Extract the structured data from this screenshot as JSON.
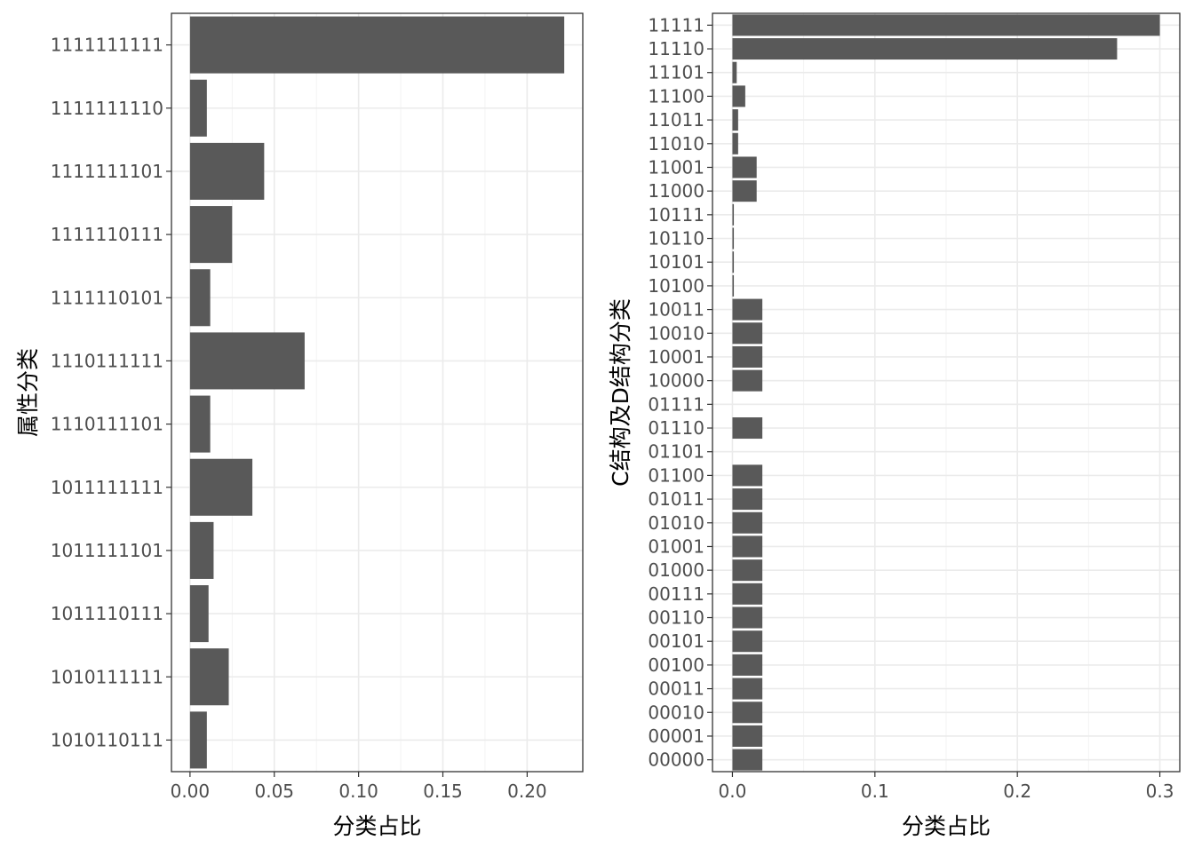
{
  "chart_data": [
    {
      "type": "bar",
      "orientation": "horizontal",
      "xlabel": "分类占比",
      "ylabel": "属性分类",
      "xlim": [
        -0.011,
        0.233
      ],
      "xticks": [
        "0.00",
        "0.05",
        "0.10",
        "0.15",
        "0.20"
      ],
      "grid": true,
      "bar_color": "#595959",
      "categories": [
        "1111111111",
        "1111111110",
        "1111111101",
        "1111110111",
        "1111110101",
        "1110111111",
        "1110111101",
        "1011111111",
        "1011111101",
        "1011110111",
        "1010111111",
        "1010110111"
      ],
      "values": [
        0.222,
        0.01,
        0.044,
        0.025,
        0.012,
        0.068,
        0.012,
        0.037,
        0.014,
        0.011,
        0.023,
        0.01
      ]
    },
    {
      "type": "bar",
      "orientation": "horizontal",
      "xlabel": "分类占比",
      "ylabel": "C结构及D结构分类",
      "xlim": [
        -0.014,
        0.314
      ],
      "xticks": [
        "0.0",
        "0.1",
        "0.2",
        "0.3"
      ],
      "grid": true,
      "bar_color": "#595959",
      "categories": [
        "11111",
        "11110",
        "11101",
        "11100",
        "11011",
        "11010",
        "11001",
        "11000",
        "10111",
        "10110",
        "10101",
        "10100",
        "10011",
        "10010",
        "10001",
        "10000",
        "01111",
        "01110",
        "01101",
        "01100",
        "01011",
        "01010",
        "01001",
        "01000",
        "00111",
        "00110",
        "00101",
        "00100",
        "00011",
        "00010",
        "00001",
        "00000"
      ],
      "values": [
        0.3,
        0.27,
        0.003,
        0.009,
        0.004,
        0.004,
        0.017,
        0.017,
        0.001,
        0.001,
        0.001,
        0.001,
        0.021,
        0.021,
        0.021,
        0.021,
        0.0,
        0.021,
        0.0,
        0.021,
        0.021,
        0.021,
        0.021,
        0.021,
        0.021,
        0.021,
        0.021,
        0.021,
        0.021,
        0.021,
        0.021,
        0.021
      ]
    }
  ]
}
